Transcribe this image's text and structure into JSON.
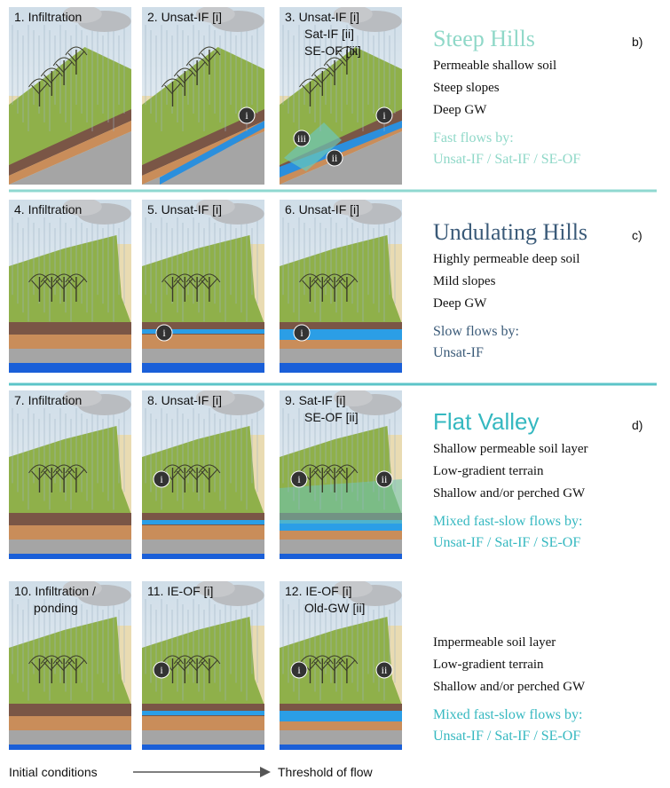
{
  "rows": [
    {
      "letter": "b)",
      "title": "Steep Hills",
      "lines": [
        "Permeable shallow soil",
        "Steep slopes",
        "Deep GW"
      ],
      "flow_heading": "Fast flows by:",
      "flow_types": "Unsat-IF / Sat-IF / SE-OF",
      "panels": [
        {
          "label": [
            "1. Infiltration"
          ],
          "markers": []
        },
        {
          "label": [
            "2. Unsat-IF [i]"
          ],
          "markers": [
            "i"
          ]
        },
        {
          "label": [
            "3. Unsat-IF [i]",
            "Sat-IF [ii]",
            "SE-OF [iii]"
          ],
          "markers": [
            "i",
            "ii",
            "iii"
          ]
        }
      ]
    },
    {
      "letter": "c)",
      "title": "Undulating Hills",
      "lines": [
        "Highly permeable deep soil",
        "Mild slopes",
        "Deep GW"
      ],
      "flow_heading": "Slow flows by:",
      "flow_types": "Unsat-IF",
      "panels": [
        {
          "label": [
            "4. Infiltration"
          ],
          "markers": []
        },
        {
          "label": [
            "5. Unsat-IF [i]"
          ],
          "markers": [
            "i"
          ]
        },
        {
          "label": [
            "6. Unsat-IF [i]"
          ],
          "markers": [
            "i"
          ]
        }
      ]
    },
    {
      "letter": "d)",
      "title": "Flat Valley",
      "lines": [
        "Shallow permeable soil layer",
        "Low-gradient terrain",
        "Shallow and/or perched GW"
      ],
      "flow_heading": "Mixed fast-slow flows by:",
      "flow_types": "Unsat-IF / Sat-IF / SE-OF",
      "panels": [
        {
          "label": [
            "7. Infiltration"
          ],
          "markers": []
        },
        {
          "label": [
            "8. Unsat-IF [i]"
          ],
          "markers": [
            "i"
          ]
        },
        {
          "label": [
            "9. Sat-IF [i]",
            "SE-OF [ii]"
          ],
          "markers": [
            "i",
            "ii"
          ]
        }
      ]
    },
    {
      "lines": [
        "Impermeable soil layer",
        "Low-gradient terrain",
        "Shallow and/or perched GW"
      ],
      "flow_heading": "Mixed fast-slow flows by:",
      "flow_types": "Unsat-IF / Sat-IF / SE-OF",
      "panels": [
        {
          "label": [
            "10. Infiltration /",
            "ponding"
          ],
          "markers": []
        },
        {
          "label": [
            "11. IE-OF [i]"
          ],
          "markers": [
            "i"
          ]
        },
        {
          "label": [
            "12. IE-OF [i]",
            "Old-GW [ii]"
          ],
          "markers": [
            "i",
            "ii"
          ]
        }
      ]
    }
  ],
  "footer": {
    "start": "Initial conditions",
    "end": "Threshold of flow"
  }
}
